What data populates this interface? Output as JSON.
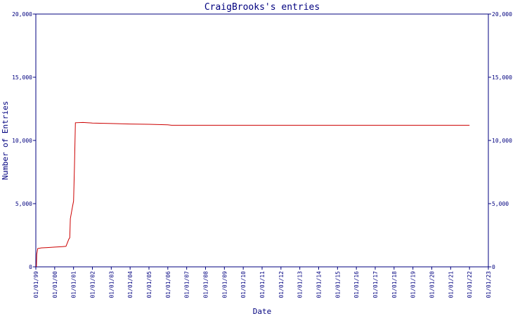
{
  "chart_data": {
    "type": "line",
    "title": "CraigBrooks's entries",
    "xlabel": "Date",
    "ylabel": "Number of Entries",
    "x_tick_labels": [
      "01/01/99",
      "01/01/00",
      "01/01/01",
      "01/01/02",
      "01/01/03",
      "01/01/04",
      "01/01/05",
      "01/01/06",
      "01/01/07",
      "01/01/08",
      "01/01/09",
      "01/01/10",
      "01/01/11",
      "01/01/12",
      "01/01/13",
      "01/01/14",
      "01/01/15",
      "01/01/16",
      "01/01/17",
      "01/01/18",
      "01/01/19",
      "01/01/20",
      "01/01/21",
      "01/01/22",
      "01/01/23"
    ],
    "y_tick_labels": [
      "0",
      "5,000",
      "10,000",
      "15,000",
      "20,000"
    ],
    "xlim": [
      1999.0,
      2023.0
    ],
    "ylim": [
      0,
      20000
    ],
    "grid": false,
    "colors": {
      "axis": "#00007f",
      "line": "#cc0000"
    },
    "series": [
      {
        "values": [
          [
            1999.03,
            0
          ],
          [
            1999.05,
            1000
          ],
          [
            1999.1,
            1450
          ],
          [
            1999.3,
            1500
          ],
          [
            1999.6,
            1520
          ],
          [
            2000.0,
            1560
          ],
          [
            2000.4,
            1600
          ],
          [
            2000.6,
            1620
          ],
          [
            2000.75,
            2200
          ],
          [
            2000.8,
            2300
          ],
          [
            2000.83,
            3800
          ],
          [
            2000.9,
            4400
          ],
          [
            2000.95,
            4800
          ],
          [
            2001.0,
            5200
          ],
          [
            2001.05,
            8000
          ],
          [
            2001.1,
            11400
          ],
          [
            2001.5,
            11420
          ],
          [
            2002.0,
            11380
          ],
          [
            2003.0,
            11340
          ],
          [
            2004.0,
            11300
          ],
          [
            2005.0,
            11280
          ],
          [
            2006.0,
            11240
          ],
          [
            2006.2,
            11200
          ],
          [
            2007.0,
            11200
          ],
          [
            2010.0,
            11200
          ],
          [
            2015.0,
            11200
          ],
          [
            2020.0,
            11200
          ],
          [
            2022.0,
            11200
          ]
        ]
      }
    ]
  }
}
